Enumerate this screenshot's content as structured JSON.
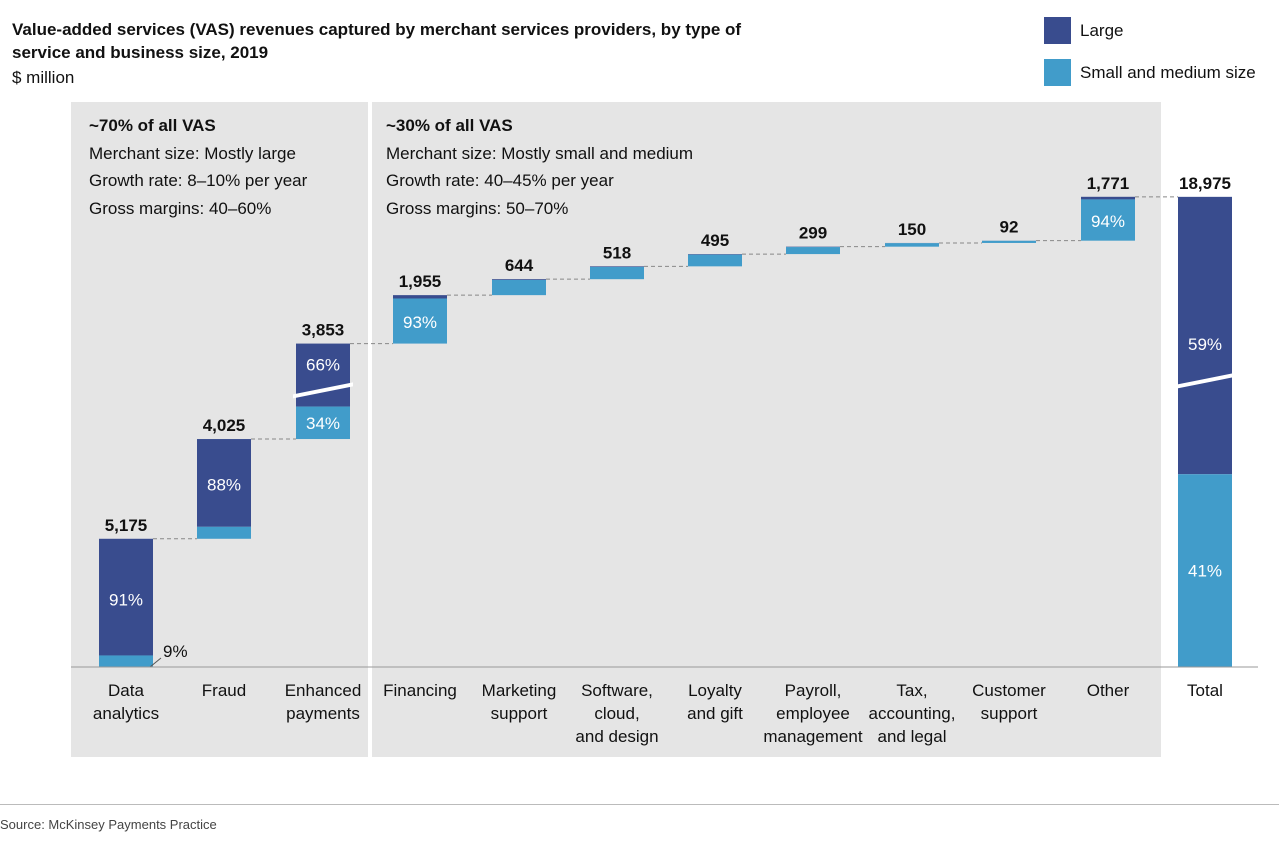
{
  "title": "Value-added services (VAS) revenues captured by merchant services providers, by type of service and business size, 2019",
  "unit": "$ million",
  "source": "Source: McKinsey Payments Practice",
  "colors": {
    "large": "#394c8e",
    "small": "#419cca",
    "panel": "#e5e5e5",
    "connector": "#888888"
  },
  "legend": [
    {
      "key": "large",
      "label": "Large"
    },
    {
      "key": "small",
      "label": "Small and medium size"
    }
  ],
  "groups": [
    {
      "heading": "~70% of all VAS",
      "lines": [
        "Merchant size: Mostly large",
        "Growth rate: 8–10% per year",
        "Gross margins: 40–60%"
      ]
    },
    {
      "heading": "~30% of all VAS",
      "lines": [
        "Merchant size: Mostly small and medium",
        "Growth rate: 40–45% per year",
        "Gross margins: 50–70%"
      ]
    }
  ],
  "chart_data": {
    "type": "bar",
    "subtype": "stacked waterfall",
    "categories": [
      "Data analytics",
      "Fraud",
      "Enhanced payments",
      "Financing",
      "Marketing support",
      "Software, cloud, and design",
      "Loyalty and gift",
      "Payroll, employee management",
      "Tax, accounting, and legal",
      "Customer support",
      "Other",
      "Total"
    ],
    "category_lines": [
      [
        "Data",
        "analytics"
      ],
      [
        "Fraud"
      ],
      [
        "Enhanced",
        "payments"
      ],
      [
        "Financing"
      ],
      [
        "Marketing",
        "support"
      ],
      [
        "Software,",
        "cloud,",
        "and design"
      ],
      [
        "Loyalty",
        "and gift"
      ],
      [
        "Payroll,",
        "employee",
        "management"
      ],
      [
        "Tax,",
        "accounting,",
        "and legal"
      ],
      [
        "Customer",
        "support"
      ],
      [
        "Other"
      ],
      [
        "Total"
      ]
    ],
    "values": [
      5175,
      4025,
      3853,
      1955,
      644,
      518,
      495,
      299,
      150,
      92,
      1771,
      18975
    ],
    "value_labels": [
      "5,175",
      "4,025",
      "3,853",
      "1,955",
      "644",
      "518",
      "495",
      "299",
      "150",
      "92",
      "1,771",
      "18,975"
    ],
    "large_share": [
      0.91,
      0.88,
      0.66,
      0.07,
      0.05,
      0.05,
      0.05,
      0.05,
      0.05,
      0.05,
      0.06,
      0.59
    ],
    "share_labels": [
      {
        "large": "91%",
        "small": "9%"
      },
      {
        "large": "88%",
        "small": ""
      },
      {
        "large": "66%",
        "small": "34%"
      },
      {
        "large": "",
        "small": "93%"
      },
      {
        "large": "",
        "small": ""
      },
      {
        "large": "",
        "small": ""
      },
      {
        "large": "",
        "small": ""
      },
      {
        "large": "",
        "small": ""
      },
      {
        "large": "",
        "small": ""
      },
      {
        "large": "",
        "small": ""
      },
      {
        "large": "",
        "small": "94%"
      },
      {
        "large": "59%",
        "small": "41%"
      }
    ],
    "axis_break": [
      false,
      false,
      true,
      false,
      false,
      false,
      false,
      false,
      false,
      false,
      false,
      true
    ],
    "series": [
      {
        "name": "Large",
        "key": "large"
      },
      {
        "name": "Small and medium size",
        "key": "small"
      }
    ],
    "xlabel": "",
    "ylabel": "$ million"
  }
}
